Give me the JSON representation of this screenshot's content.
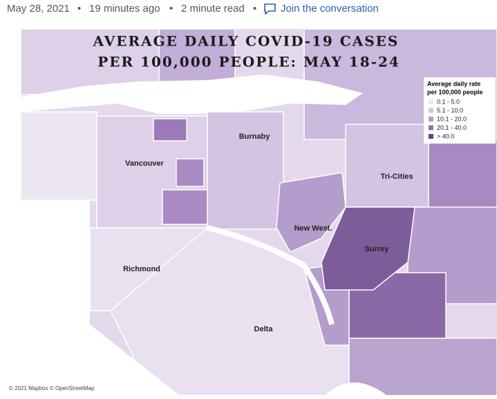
{
  "byline": {
    "date": "May 28, 2021",
    "separator": "•",
    "time_ago": "19 minutes ago",
    "read_time": "2 minute read",
    "link": "Join the conversation"
  },
  "map": {
    "title_lines": [
      "AVERAGE DAILY COVID-19 CASES",
      "PER 100,000 PEOPLE: MAY 18-24"
    ],
    "legend": {
      "title_lines": [
        "Average daily rate",
        "per 100,000 people"
      ],
      "items": [
        {
          "label": "0.1 - 5.0",
          "color": "#ece6f2"
        },
        {
          "label": "5.1 - 10.0",
          "color": "#d3c4e3"
        },
        {
          "label": "10.1 - 20.0",
          "color": "#b49ccc"
        },
        {
          "label": "20.1 - 40.0",
          "color": "#8f70ad"
        },
        {
          "label": "> 40.0",
          "color": "#634384"
        }
      ]
    },
    "places": [
      "Burnaby",
      "Vancouver",
      "Tri-Cities",
      "New West.",
      "Surrey",
      "Richmond",
      "Delta"
    ],
    "attribution": "© 2021 Mapbox © OpenStreetMap"
  }
}
